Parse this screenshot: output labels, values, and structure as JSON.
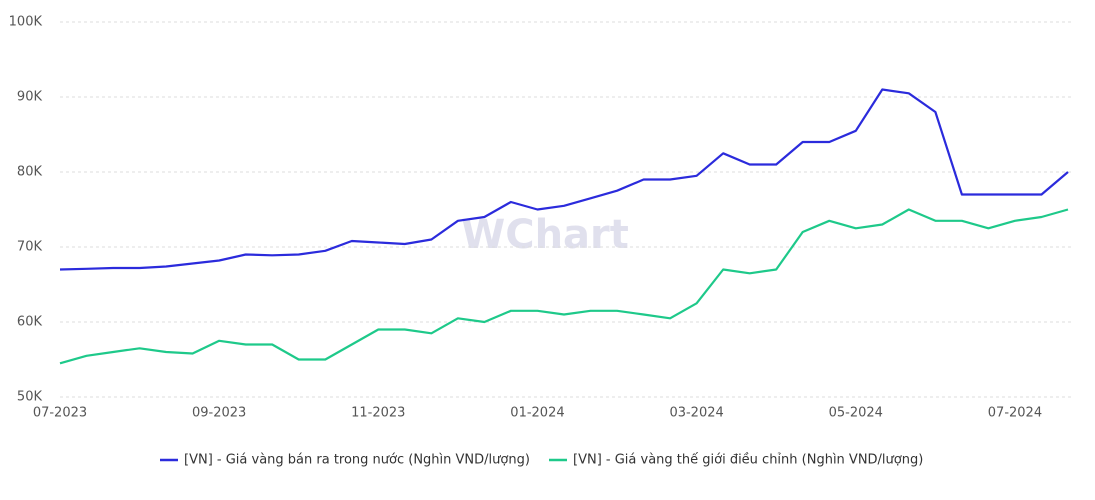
{
  "chart_data": {
    "type": "line",
    "watermark": "WChart",
    "categories": [
      "07-2023",
      null,
      null,
      null,
      null,
      null,
      "09-2023",
      null,
      null,
      null,
      null,
      null,
      "11-2023",
      null,
      null,
      null,
      null,
      null,
      "01-2024",
      null,
      null,
      null,
      null,
      null,
      "03-2024",
      null,
      null,
      null,
      null,
      null,
      "05-2024",
      null,
      null,
      null,
      null,
      null,
      "07-2024",
      null,
      null
    ],
    "series": [
      {
        "name": "[VN] - Giá vàng bán ra trong nước (Nghìn VND/lượng)",
        "color": "#2b2bdc",
        "values": [
          67000,
          67100,
          67200,
          67200,
          67400,
          67800,
          68200,
          69000,
          68900,
          69000,
          69500,
          70800,
          70600,
          70400,
          71000,
          73500,
          74000,
          76000,
          75000,
          75500,
          76500,
          77500,
          79000,
          79000,
          79500,
          82500,
          81000,
          81000,
          84000,
          84000,
          85500,
          91000,
          90500,
          88000,
          77000,
          77000,
          77000,
          77000,
          80000
        ]
      },
      {
        "name": "[VN] - Giá vàng thế giới điều chỉnh (Nghìn VND/lượng)",
        "color": "#1ec98a",
        "values": [
          54500,
          55500,
          56000,
          56500,
          56000,
          55800,
          57500,
          57000,
          57000,
          55000,
          55000,
          57000,
          59000,
          59000,
          58500,
          60500,
          60000,
          61500,
          61500,
          61000,
          61500,
          61500,
          61000,
          60500,
          62500,
          67000,
          66500,
          67000,
          72000,
          73500,
          72500,
          73000,
          75000,
          73500,
          73500,
          72500,
          73500,
          74000,
          75000
        ]
      }
    ],
    "ylim": [
      50000,
      100000
    ],
    "yticks": [
      {
        "value": 50000,
        "label": "50K"
      },
      {
        "value": 60000,
        "label": "60K"
      },
      {
        "value": 70000,
        "label": "70K"
      },
      {
        "value": 80000,
        "label": "80K"
      },
      {
        "value": 90000,
        "label": "90K"
      },
      {
        "value": 100000,
        "label": "100K"
      }
    ],
    "grid": true,
    "legend": "bottom"
  }
}
